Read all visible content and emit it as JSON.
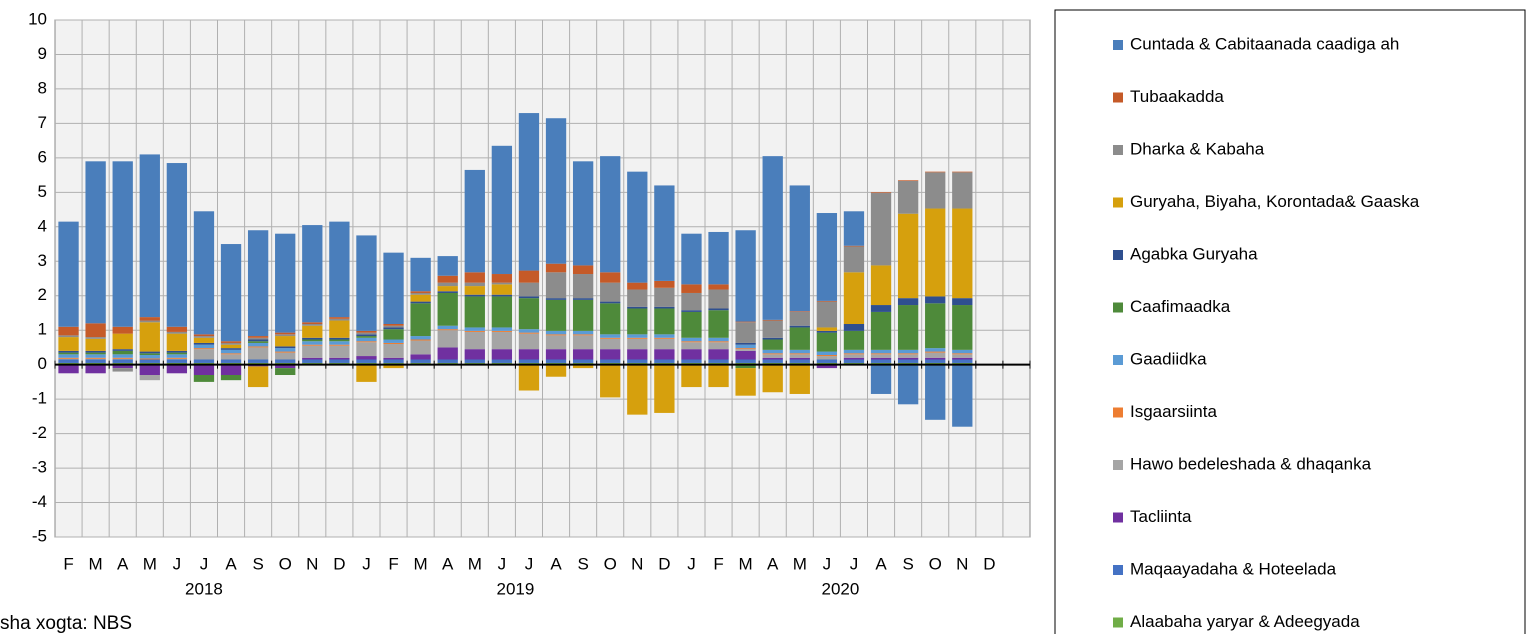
{
  "chart_data": {
    "type": "stacked_bar",
    "source": "sha xogta: NBS",
    "categories": [
      "F",
      "M",
      "A",
      "M",
      "J",
      "J",
      "A",
      "S",
      "O",
      "N",
      "D",
      "J",
      "F",
      "M",
      "A",
      "M",
      "J",
      "J",
      "A",
      "S",
      "O",
      "N",
      "D",
      "J",
      "F",
      "M",
      "A",
      "M",
      "J",
      "J",
      "A",
      "S",
      "O",
      "N",
      "D",
      null
    ],
    "year_groups": [
      {
        "label": "2018",
        "from": 0,
        "to": 10
      },
      {
        "label": "2019",
        "from": 11,
        "to": 22
      },
      {
        "label": "2020",
        "from": 23,
        "to": 34
      }
    ],
    "ylim": [
      -5,
      10
    ],
    "yticks": [
      -5,
      -4,
      -3,
      -2,
      -1,
      0,
      1,
      2,
      3,
      4,
      5,
      6,
      7,
      8,
      9,
      10
    ],
    "grid": true,
    "legend": "right",
    "series": [
      {
        "name": "Cuntada & Cabitaanada caadiga ah",
        "color": "#4a7ebb",
        "values": [
          3.05,
          4.7,
          4.8,
          4.72,
          4.75,
          3.57,
          2.82,
          3.07,
          2.87,
          2.82,
          2.77,
          2.77,
          2.07,
          0.97,
          0.57,
          2.97,
          3.72,
          4.57,
          4.22,
          3.02,
          3.37,
          3.22,
          2.77,
          1.47,
          1.52,
          2.65,
          4.75,
          3.65,
          2.55,
          1.0,
          -0.85,
          -1.15,
          -1.6,
          -1.8,
          null,
          null
        ]
      },
      {
        "name": "Tubaakadda",
        "color": "#c55a28",
        "values": [
          0.25,
          0.4,
          0.2,
          0.1,
          0.15,
          0.05,
          0.05,
          0.05,
          0.05,
          0.05,
          0.05,
          0.05,
          0.05,
          0.05,
          0.2,
          0.3,
          0.25,
          0.35,
          0.25,
          0.25,
          0.3,
          0.2,
          0.2,
          0.25,
          0.15,
          0.02,
          0.02,
          0.02,
          0.02,
          0.02,
          0.02,
          0.02,
          0.02,
          0.02,
          null,
          null
        ]
      },
      {
        "name": "Dharka & Kabaha",
        "color": "#8c8c8c",
        "values": [
          0.05,
          0.05,
          -0.1,
          0.05,
          0.05,
          0.05,
          0.05,
          0.05,
          0.05,
          0.05,
          0.05,
          0.05,
          0.05,
          0.05,
          0.1,
          0.1,
          0.05,
          0.4,
          0.75,
          0.7,
          0.55,
          0.5,
          0.55,
          0.5,
          0.55,
          0.6,
          0.5,
          0.4,
          0.75,
          0.75,
          2.1,
          0.95,
          1.05,
          1.05,
          null,
          null
        ]
      },
      {
        "name": "Guryaha, Biyaha, Korontada& Gaaska",
        "color": "#d6a00d",
        "values": [
          0.4,
          0.35,
          0.45,
          0.85,
          0.5,
          0.15,
          0.1,
          -0.6,
          0.3,
          0.35,
          0.5,
          -0.5,
          -0.1,
          0.2,
          0.15,
          0.25,
          0.3,
          -0.75,
          -0.35,
          -0.1,
          -0.95,
          -1.45,
          -1.4,
          -0.65,
          -0.65,
          -0.8,
          -0.8,
          -0.85,
          0.1,
          1.5,
          1.15,
          2.45,
          2.55,
          2.6,
          null,
          null
        ]
      },
      {
        "name": "Agabka Guryaha",
        "color": "#2f4f8f",
        "values": [
          0.05,
          0.05,
          0.05,
          0.05,
          0.05,
          0.05,
          0.05,
          0.05,
          0.05,
          0.05,
          0.05,
          0.05,
          0.05,
          0.05,
          0.05,
          0.05,
          0.05,
          0.05,
          0.05,
          0.05,
          0.05,
          0.05,
          0.05,
          0.05,
          0.05,
          0.05,
          0.05,
          0.05,
          0.05,
          0.2,
          0.2,
          0.2,
          0.2,
          0.2,
          null,
          null
        ]
      },
      {
        "name": "Caafimaadka",
        "color": "#4e8a3a",
        "values": [
          0.05,
          0.05,
          0.1,
          0.05,
          0.05,
          -0.2,
          -0.15,
          0.05,
          -0.2,
          0.05,
          0.05,
          0.05,
          0.3,
          0.95,
          0.95,
          0.9,
          0.9,
          0.9,
          0.9,
          0.9,
          0.9,
          0.75,
          0.75,
          0.75,
          0.8,
          -0.1,
          0.3,
          0.65,
          0.55,
          0.55,
          1.1,
          1.3,
          1.3,
          1.3,
          null,
          null
        ]
      },
      {
        "name": "Gaadiidka",
        "color": "#5b9bd5",
        "values": [
          0.1,
          0.1,
          0.1,
          0.1,
          0.1,
          0.1,
          0.1,
          0.1,
          0.1,
          0.1,
          0.1,
          0.1,
          0.1,
          0.1,
          0.1,
          0.1,
          0.1,
          0.1,
          0.1,
          0.1,
          0.1,
          0.1,
          0.1,
          0.1,
          0.1,
          0.1,
          0.1,
          0.1,
          0.1,
          0.1,
          0.1,
          0.1,
          0.1,
          0.1,
          null,
          null
        ]
      },
      {
        "name": "Isgaarsiinta",
        "color": "#ed7d31",
        "values": [
          0.03,
          0.03,
          0.03,
          0.03,
          0.03,
          0.03,
          0.03,
          0.03,
          0.03,
          0.03,
          0.03,
          0.03,
          0.03,
          0.03,
          0.03,
          0.03,
          0.03,
          0.03,
          0.03,
          0.03,
          0.03,
          0.03,
          0.03,
          0.03,
          0.03,
          0.03,
          0.03,
          0.03,
          0.03,
          0.03,
          0.03,
          0.03,
          0.03,
          0.03,
          null,
          null
        ]
      },
      {
        "name": "Hawo bedeleshada & dhaqanka",
        "color": "#a5a5a5",
        "values": [
          0.02,
          0.02,
          0.02,
          -0.15,
          0.02,
          0.3,
          0.15,
          0.35,
          0.2,
          0.35,
          0.35,
          0.4,
          0.4,
          0.4,
          0.5,
          0.5,
          0.5,
          0.45,
          0.4,
          0.4,
          0.3,
          0.3,
          0.3,
          0.2,
          0.2,
          0.05,
          0.1,
          0.1,
          0.1,
          0.1,
          0.1,
          0.1,
          0.15,
          0.1,
          null,
          null
        ]
      },
      {
        "name": "Tacliinta",
        "color": "#7030a0",
        "values": [
          -0.25,
          -0.25,
          -0.1,
          -0.3,
          -0.25,
          -0.3,
          -0.3,
          -0.05,
          -0.1,
          0.05,
          0.05,
          0.1,
          0.05,
          0.15,
          0.35,
          0.3,
          0.3,
          0.3,
          0.3,
          0.3,
          0.3,
          0.3,
          0.3,
          0.3,
          0.3,
          0.25,
          0.05,
          0.05,
          -0.1,
          0.05,
          0.05,
          0.05,
          0.05,
          0.05,
          null,
          null
        ]
      },
      {
        "name": "Maqaayadaha & Hoteelada",
        "color": "#4472c4",
        "values": [
          0.1,
          0.1,
          0.1,
          0.1,
          0.1,
          0.1,
          0.1,
          0.1,
          0.1,
          0.1,
          0.1,
          0.1,
          0.1,
          0.1,
          0.1,
          0.1,
          0.1,
          0.1,
          0.1,
          0.1,
          0.1,
          0.1,
          0.1,
          0.1,
          0.1,
          0.1,
          0.1,
          0.1,
          0.1,
          0.1,
          0.1,
          0.1,
          0.1,
          0.1,
          null,
          null
        ]
      },
      {
        "name": "Alaabaha yaryar & Adeegyada",
        "color": "#70ad47",
        "values": [
          0.05,
          0.05,
          0.05,
          0.05,
          0.05,
          0.05,
          0.05,
          0.05,
          0.05,
          0.05,
          0.05,
          0.05,
          0.05,
          0.05,
          0.05,
          0.05,
          0.05,
          0.05,
          0.05,
          0.05,
          0.05,
          0.05,
          0.05,
          0.05,
          0.05,
          0.05,
          0.05,
          0.05,
          0.05,
          0.05,
          0.05,
          0.05,
          0.05,
          0.05,
          null,
          null
        ]
      }
    ]
  }
}
